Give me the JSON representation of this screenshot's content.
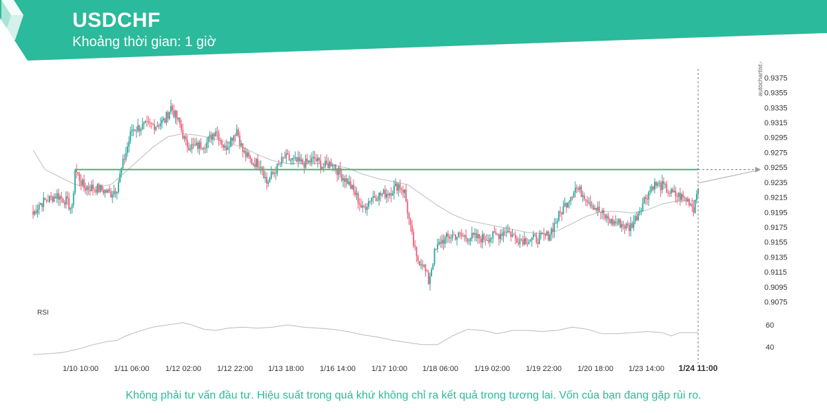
{
  "header": {
    "title": "USDCHF",
    "subtitle": "Khoảng thời gian: 1 giờ"
  },
  "colors": {
    "brand": "#2bba9b",
    "bull": "#26a69a",
    "bear": "#ef5a73",
    "level": "#4caf78",
    "ma": "#bbbbbb",
    "rsi": "#bbbbbb"
  },
  "watermark": "autochartist.com",
  "footer": {
    "disclaimer": "Không phải tư vấn đầu tư. Hiệu suất trong quá khứ không chỉ ra kết quả trong tương lai. Vốn của bạn đang gặp rủi ro."
  },
  "chart_data": {
    "type": "candlestick",
    "symbol": "USDCHF",
    "interval": "1 giờ",
    "ylim": [
      0.907,
      0.9385
    ],
    "y_ticks": [
      "0.9375",
      "0.9355",
      "0.9335",
      "0.9315",
      "0.9295",
      "0.9275",
      "0.9255",
      "0.9235",
      "0.9215",
      "0.9195",
      "0.9175",
      "0.9155",
      "0.9135",
      "0.9115",
      "0.9095",
      "0.9075"
    ],
    "x_ticks": [
      "1/10 10:00",
      "1/11 06:00",
      "1/12 02:00",
      "1/12 22:00",
      "1/13 18:00",
      "1/16 14:00",
      "1/17 10:00",
      "1/18 06:00",
      "1/19 02:00",
      "1/19 22:00",
      "1/20 18:00",
      "1/23 14:00"
    ],
    "current_time_label": "1/24 11:00",
    "level": {
      "price": 0.9252,
      "projected": true
    },
    "price_anchors": [
      [
        0,
        0.9192
      ],
      [
        4,
        0.9206
      ],
      [
        16,
        0.9218
      ],
      [
        22,
        0.921
      ],
      [
        26,
        0.9198
      ],
      [
        28,
        0.9252
      ],
      [
        34,
        0.9228
      ],
      [
        40,
        0.9228
      ],
      [
        46,
        0.9225
      ],
      [
        52,
        0.922
      ],
      [
        56,
        0.9228
      ],
      [
        60,
        0.926
      ],
      [
        66,
        0.9306
      ],
      [
        74,
        0.931
      ],
      [
        82,
        0.9312
      ],
      [
        88,
        0.9318
      ],
      [
        92,
        0.9336
      ],
      [
        98,
        0.9312
      ],
      [
        102,
        0.9286
      ],
      [
        108,
        0.9282
      ],
      [
        116,
        0.9288
      ],
      [
        122,
        0.9306
      ],
      [
        128,
        0.928
      ],
      [
        136,
        0.9306
      ],
      [
        140,
        0.9276
      ],
      [
        146,
        0.9262
      ],
      [
        152,
        0.926
      ],
      [
        156,
        0.9234
      ],
      [
        162,
        0.9252
      ],
      [
        168,
        0.9268
      ],
      [
        176,
        0.9262
      ],
      [
        182,
        0.926
      ],
      [
        188,
        0.9266
      ],
      [
        194,
        0.9256
      ],
      [
        200,
        0.9262
      ],
      [
        204,
        0.9248
      ],
      [
        210,
        0.9236
      ],
      [
        216,
        0.9216
      ],
      [
        220,
        0.9198
      ],
      [
        226,
        0.9216
      ],
      [
        232,
        0.9218
      ],
      [
        238,
        0.9222
      ],
      [
        244,
        0.9232
      ],
      [
        248,
        0.9222
      ],
      [
        252,
        0.9172
      ],
      [
        256,
        0.9132
      ],
      [
        260,
        0.9128
      ],
      [
        264,
        0.9102
      ],
      [
        268,
        0.914
      ],
      [
        272,
        0.9156
      ],
      [
        280,
        0.9164
      ],
      [
        290,
        0.9162
      ],
      [
        300,
        0.916
      ],
      [
        310,
        0.9164
      ],
      [
        316,
        0.9172
      ],
      [
        322,
        0.916
      ],
      [
        330,
        0.9158
      ],
      [
        338,
        0.916
      ],
      [
        344,
        0.9164
      ],
      [
        350,
        0.9186
      ],
      [
        356,
        0.9208
      ],
      [
        362,
        0.9228
      ],
      [
        368,
        0.9218
      ],
      [
        374,
        0.9204
      ],
      [
        380,
        0.9192
      ],
      [
        386,
        0.9182
      ],
      [
        392,
        0.918
      ],
      [
        398,
        0.9174
      ],
      [
        402,
        0.9186
      ],
      [
        408,
        0.9212
      ],
      [
        414,
        0.9232
      ],
      [
        420,
        0.923
      ],
      [
        426,
        0.922
      ],
      [
        432,
        0.9216
      ],
      [
        438,
        0.921
      ],
      [
        441,
        0.92
      ],
      [
        444,
        0.9234
      ]
    ],
    "ma": {
      "name": "Moving average",
      "points": [
        [
          0,
          0.9278
        ],
        [
          8,
          0.9252
        ],
        [
          20,
          0.924
        ],
        [
          28,
          0.9232
        ],
        [
          40,
          0.9228
        ],
        [
          52,
          0.9232
        ],
        [
          60,
          0.9246
        ],
        [
          70,
          0.9264
        ],
        [
          80,
          0.9282
        ],
        [
          90,
          0.9296
        ],
        [
          100,
          0.93
        ],
        [
          110,
          0.9298
        ],
        [
          120,
          0.9294
        ],
        [
          130,
          0.9288
        ],
        [
          140,
          0.9282
        ],
        [
          150,
          0.9272
        ],
        [
          160,
          0.9264
        ],
        [
          170,
          0.926
        ],
        [
          180,
          0.926
        ],
        [
          190,
          0.926
        ],
        [
          200,
          0.9258
        ],
        [
          210,
          0.9254
        ],
        [
          220,
          0.9246
        ],
        [
          230,
          0.924
        ],
        [
          240,
          0.9236
        ],
        [
          250,
          0.9232
        ],
        [
          260,
          0.9218
        ],
        [
          270,
          0.9204
        ],
        [
          280,
          0.9192
        ],
        [
          290,
          0.9184
        ],
        [
          300,
          0.918
        ],
        [
          310,
          0.9176
        ],
        [
          320,
          0.9172
        ],
        [
          330,
          0.9168
        ],
        [
          340,
          0.9166
        ],
        [
          350,
          0.917
        ],
        [
          360,
          0.918
        ],
        [
          370,
          0.919
        ],
        [
          380,
          0.9196
        ],
        [
          390,
          0.9196
        ],
        [
          400,
          0.9194
        ],
        [
          410,
          0.9198
        ],
        [
          420,
          0.9206
        ],
        [
          430,
          0.921
        ],
        [
          440,
          0.921
        ],
        [
          444,
          0.9212
        ]
      ]
    },
    "rsi": {
      "label": "RSI",
      "ticks": [
        60,
        40
      ],
      "ylim": [
        30,
        70
      ],
      "points": [
        [
          0,
          33
        ],
        [
          12,
          34
        ],
        [
          20,
          35
        ],
        [
          30,
          38
        ],
        [
          40,
          42
        ],
        [
          50,
          45
        ],
        [
          56,
          46
        ],
        [
          62,
          50
        ],
        [
          70,
          54
        ],
        [
          80,
          58
        ],
        [
          90,
          60
        ],
        [
          100,
          62
        ],
        [
          106,
          60
        ],
        [
          114,
          56
        ],
        [
          122,
          55
        ],
        [
          130,
          57
        ],
        [
          140,
          58
        ],
        [
          150,
          57
        ],
        [
          160,
          58
        ],
        [
          170,
          60
        ],
        [
          180,
          58
        ],
        [
          190,
          57
        ],
        [
          200,
          56
        ],
        [
          210,
          54
        ],
        [
          220,
          51
        ],
        [
          230,
          49
        ],
        [
          240,
          46
        ],
        [
          250,
          44
        ],
        [
          260,
          42
        ],
        [
          270,
          42
        ],
        [
          280,
          50
        ],
        [
          290,
          56
        ],
        [
          300,
          55
        ],
        [
          310,
          52
        ],
        [
          320,
          55
        ],
        [
          330,
          55
        ],
        [
          340,
          54
        ],
        [
          350,
          55
        ],
        [
          360,
          58
        ],
        [
          370,
          56
        ],
        [
          380,
          52
        ],
        [
          390,
          52
        ],
        [
          400,
          53
        ],
        [
          410,
          54
        ],
        [
          420,
          53
        ],
        [
          426,
          50
        ],
        [
          432,
          53
        ],
        [
          444,
          53
        ]
      ]
    }
  }
}
